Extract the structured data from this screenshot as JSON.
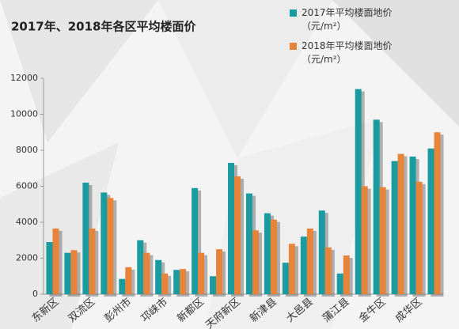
{
  "chart_data": {
    "type": "bar",
    "title": "2017年、2018年各区平均楼面价",
    "categories": [
      "东新区",
      null,
      "双流区",
      null,
      "彭州市",
      null,
      "邛崃市",
      null,
      "新都区",
      null,
      "天府新区",
      null,
      "新津县",
      null,
      "大邑县",
      null,
      "蒲江县",
      null,
      "金牛区",
      null,
      "成华区",
      null
    ],
    "series": [
      {
        "name": "2017年平均楼面地价\n（元/m²）",
        "color": "#1a9ba0",
        "values": [
          2900,
          2300,
          6200,
          5650,
          850,
          3000,
          1900,
          1350,
          5900,
          1000,
          7300,
          5600,
          4500,
          1750,
          3200,
          4650,
          1150,
          11400,
          9700,
          7400,
          7650,
          8100
        ]
      },
      {
        "name": "2018年平均楼面地价\n（元/m²）",
        "color": "#e8843a",
        "values": [
          3650,
          2450,
          3650,
          5350,
          1500,
          2300,
          1150,
          1400,
          2300,
          2500,
          6550,
          3550,
          4150,
          2800,
          3650,
          2600,
          2150,
          6000,
          5950,
          7800,
          6250,
          9000
        ]
      }
    ],
    "ylim": [
      0,
      12000
    ],
    "yticks": [
      0,
      2000,
      4000,
      6000,
      8000,
      10000,
      12000
    ],
    "grid": false
  }
}
